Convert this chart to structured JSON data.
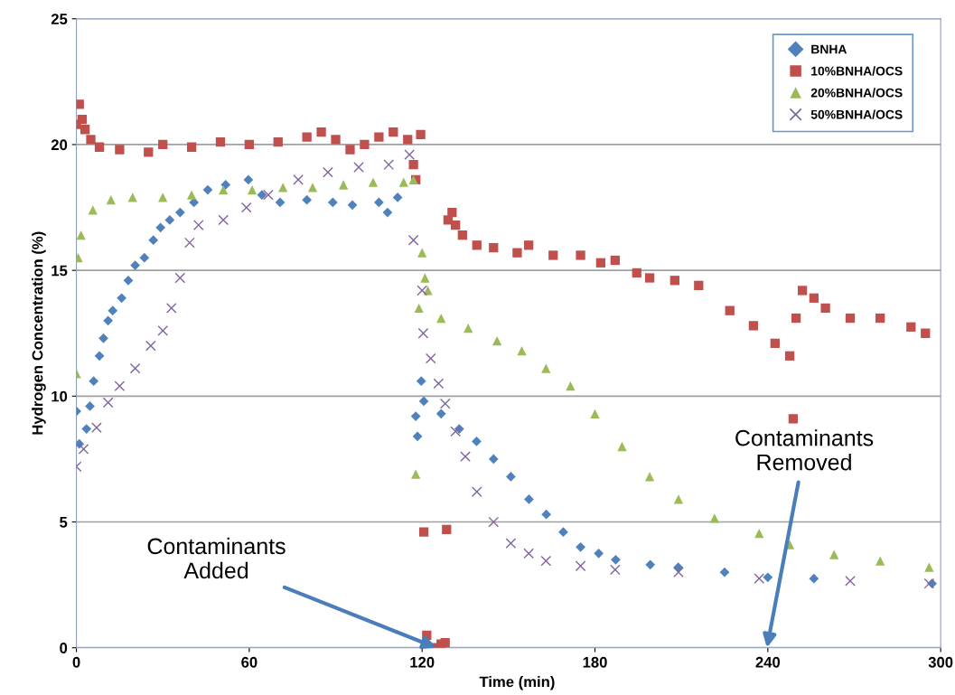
{
  "chart_data": {
    "type": "scatter",
    "xlabel": "Time (min)",
    "ylabel": "Hydrogen Concentration (%)",
    "xlim": [
      0,
      300
    ],
    "xticks": [
      0,
      60,
      120,
      180,
      240,
      300
    ],
    "ylim": [
      0,
      25
    ],
    "yticks": [
      0,
      5,
      10,
      15,
      20,
      25
    ],
    "grid": "y",
    "legend": "top right",
    "annotations": [
      "Contaminants\nAdded",
      "Contaminants\nRemoved"
    ],
    "series": [
      {
        "name": "BNHA",
        "color": "#4f81bd",
        "marker": "diamond",
        "x": [
          0,
          1,
          3.5,
          4.7,
          6,
          8,
          9.4,
          11,
          12.6,
          15.7,
          18,
          20.4,
          23.6,
          26.7,
          29.2,
          32.4,
          36,
          40.8,
          45.6,
          51.8,
          59.7,
          64.4,
          70.7,
          80,
          89,
          95.8,
          105,
          108,
          111.5,
          117.8,
          118.4,
          119.7,
          120.6,
          126.6,
          132.9,
          138.9,
          144.8,
          150.8,
          157.1,
          163.1,
          169,
          175,
          181.3,
          187.2,
          199.2,
          208.9,
          225,
          240,
          256,
          297
        ],
        "values": [
          9.4,
          8.1,
          8.7,
          9.6,
          10.6,
          11.6,
          12.3,
          13,
          13.4,
          13.9,
          14.6,
          15.2,
          15.5,
          16.2,
          16.7,
          17,
          17.3,
          17.7,
          18.2,
          18.4,
          18.6,
          18,
          17.7,
          17.8,
          17.7,
          17.6,
          17.7,
          17.3,
          17.9,
          9.2,
          8.4,
          10.6,
          9.8,
          9.3,
          8.7,
          8.2,
          7.5,
          6.8,
          5.9,
          5.3,
          4.6,
          4,
          3.75,
          3.5,
          3.3,
          3.2,
          3,
          2.8,
          2.75,
          2.55
        ]
      },
      {
        "name": "10%BNHA/OCS",
        "color": "#c0504d",
        "marker": "square",
        "x": [
          0,
          1,
          2,
          3,
          5,
          8,
          15,
          25,
          30,
          40,
          50,
          60,
          70,
          80,
          85,
          90,
          95,
          100,
          105,
          110,
          115,
          117,
          117.8,
          119.5,
          120.6,
          121.6,
          124,
          126.6,
          128,
          128.5,
          129,
          130.4,
          131.6,
          134,
          139,
          144.8,
          153,
          157,
          165.5,
          175,
          182,
          187,
          194.5,
          199,
          207.7,
          216,
          226.8,
          235,
          242.5,
          247.6,
          248.8,
          249.8,
          252,
          256,
          260,
          268.6,
          279,
          289.7,
          294.7
        ],
        "values": [
          20.8,
          21.6,
          21,
          20.6,
          20.2,
          19.9,
          19.8,
          19.7,
          20,
          19.9,
          20.1,
          20,
          20.1,
          20.3,
          20.5,
          20.2,
          19.8,
          20,
          20.3,
          20.5,
          20.2,
          19.2,
          18.6,
          20.4,
          4.6,
          0.5,
          0,
          0.15,
          0.2,
          4.7,
          17,
          17.3,
          16.8,
          16.4,
          16,
          15.9,
          15.7,
          16,
          15.6,
          15.6,
          15.3,
          15.4,
          14.9,
          14.7,
          14.6,
          14.4,
          13.4,
          12.8,
          12.1,
          11.6,
          9.1,
          13.1,
          14.2,
          13.9,
          13.5,
          13.1,
          13.1,
          12.75,
          12.5
        ]
      },
      {
        "name": "20%BNHA/OCS",
        "color": "#9bbb59",
        "marker": "triangle",
        "x": [
          0,
          0.6,
          1.6,
          5.7,
          12,
          19.5,
          30,
          40,
          51,
          61,
          71.7,
          82,
          92.7,
          103,
          113.6,
          117,
          117.8,
          118.9,
          120,
          121,
          122,
          126.6,
          136,
          146,
          154.6,
          163,
          171.5,
          180,
          189.4,
          199,
          209,
          221.5,
          237,
          247.6,
          263,
          279,
          296
        ],
        "values": [
          10.9,
          15.5,
          16.4,
          17.4,
          17.8,
          17.9,
          17.9,
          18,
          18.2,
          18.2,
          18.3,
          18.3,
          18.4,
          18.5,
          18.5,
          18.6,
          6.9,
          13.5,
          15.7,
          14.7,
          14.2,
          13.1,
          12.7,
          12.2,
          11.8,
          11.1,
          10.4,
          9.3,
          8,
          6.8,
          5.9,
          5.15,
          4.55,
          4.1,
          3.7,
          3.45,
          3.2
        ]
      },
      {
        "name": "50%BNHA/OCS",
        "color": "#8064a2",
        "marker": "cross",
        "x": [
          0,
          2.5,
          7,
          11,
          15,
          20.4,
          25.8,
          30,
          33,
          36,
          39.3,
          42.4,
          51,
          59,
          66.6,
          77,
          87.3,
          98,
          108.4,
          115.6,
          117,
          120,
          120.4,
          123,
          125.7,
          128,
          131.6,
          135,
          139,
          144.8,
          150.8,
          157,
          163,
          175,
          187,
          209,
          237,
          268.6,
          296
        ],
        "values": [
          7.2,
          7.9,
          8.75,
          9.75,
          10.4,
          11.1,
          12,
          12.6,
          13.5,
          14.7,
          16.1,
          16.8,
          17,
          17.5,
          18,
          18.6,
          18.9,
          19.1,
          19.2,
          19.6,
          16.2,
          14.2,
          12.5,
          11.5,
          10.5,
          9.7,
          8.6,
          7.6,
          6.2,
          5,
          4.15,
          3.75,
          3.45,
          3.25,
          3.1,
          3,
          2.75,
          2.65,
          2.55
        ]
      }
    ]
  }
}
